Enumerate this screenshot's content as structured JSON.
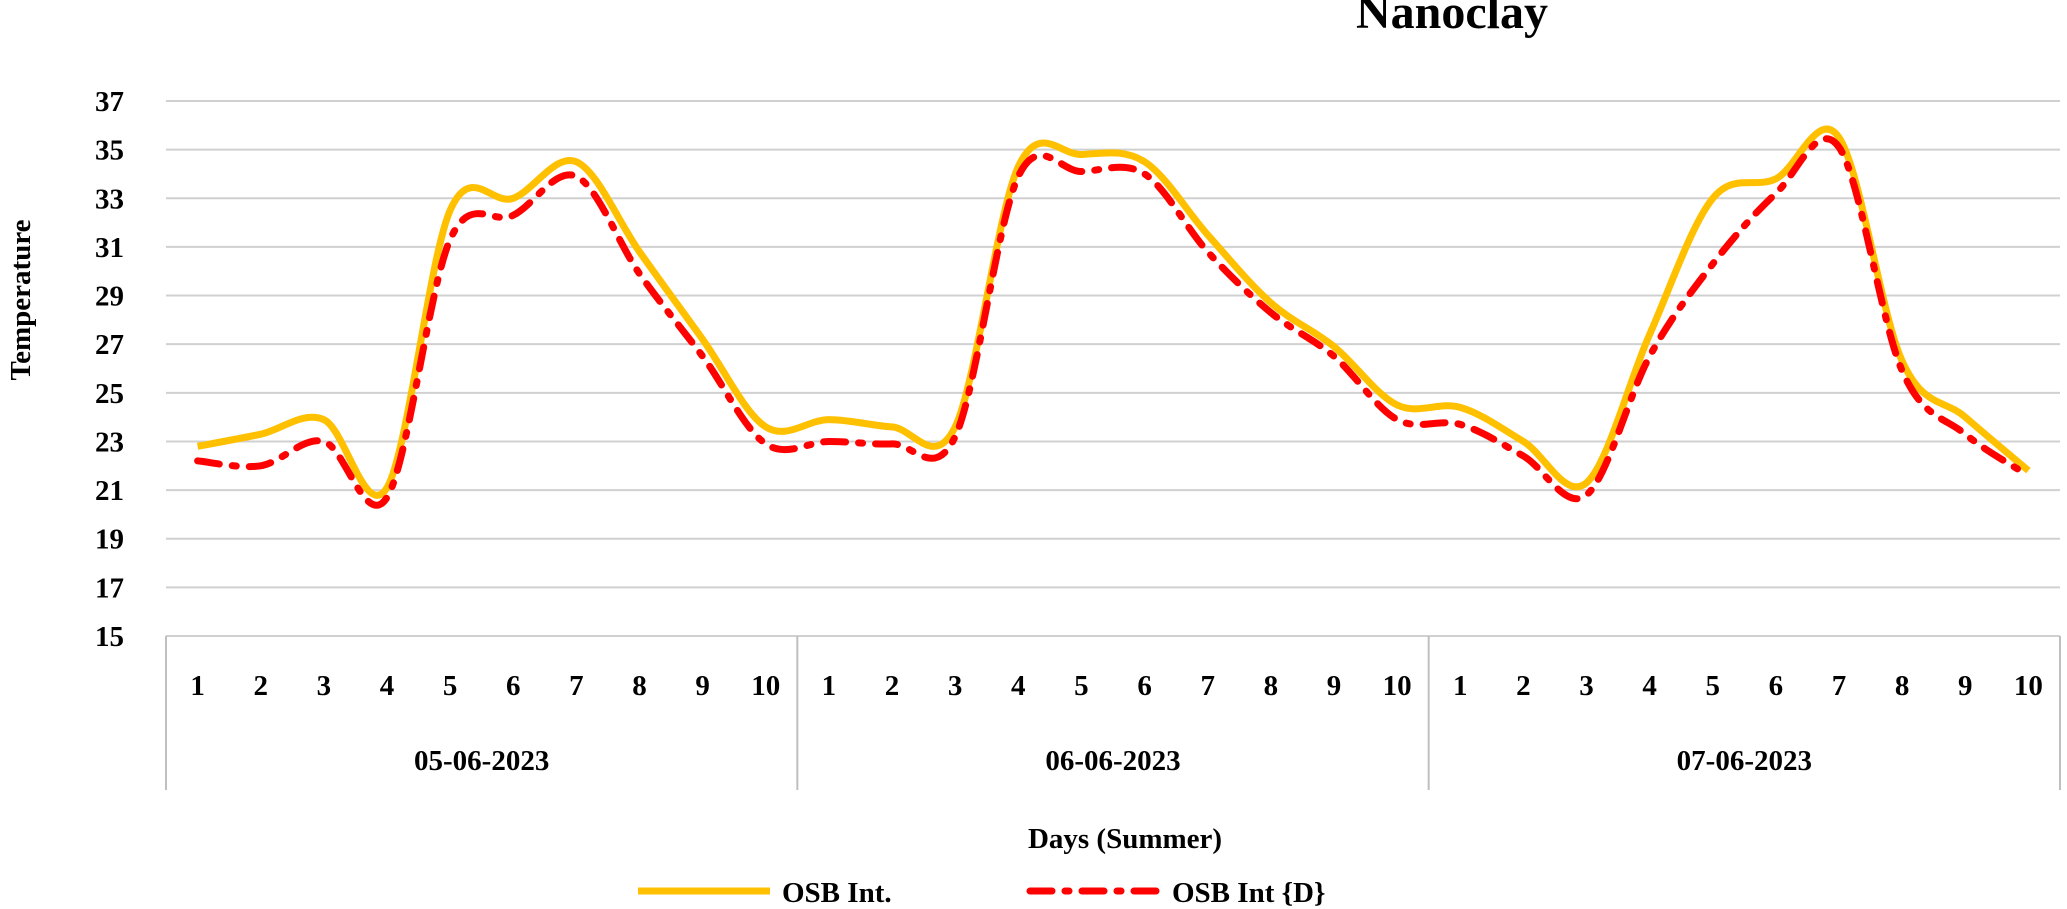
{
  "chart_data": {
    "type": "line",
    "title": "Nanoclay",
    "xlabel": "Days (Summer)",
    "ylabel": "Temperature",
    "ylim": [
      15,
      37
    ],
    "yticks": [
      15,
      17,
      19,
      21,
      23,
      25,
      27,
      29,
      31,
      33,
      35,
      37
    ],
    "grid": true,
    "legend_position": "bottom",
    "groups": [
      {
        "label": "05-06-2023",
        "categories": [
          "1",
          "2",
          "3",
          "4",
          "5",
          "6",
          "7",
          "8",
          "9",
          "10"
        ]
      },
      {
        "label": "06-06-2023",
        "categories": [
          "1",
          "2",
          "3",
          "4",
          "5",
          "6",
          "7",
          "8",
          "9",
          "10"
        ]
      },
      {
        "label": "07-06-2023",
        "categories": [
          "1",
          "2",
          "3",
          "4",
          "5",
          "6",
          "7",
          "8",
          "9",
          "10"
        ]
      }
    ],
    "series": [
      {
        "name": "OSB Int.",
        "color": "#FFC000",
        "style": "solid",
        "values": [
          22.8,
          23.3,
          23.9,
          21.1,
          32.5,
          33.0,
          34.5,
          30.8,
          27.2,
          23.6,
          23.9,
          23.6,
          23.6,
          34.3,
          34.8,
          34.5,
          31.5,
          28.7,
          26.9,
          24.5,
          24.4,
          23.0,
          21.3,
          27.4,
          33.0,
          33.8,
          35.5,
          26.3,
          24.0,
          21.8
        ]
      },
      {
        "name": "OSB Int {D}",
        "color": "#FF0000",
        "style": "dash-dot",
        "values": [
          22.2,
          22.0,
          23.0,
          20.7,
          31.3,
          32.3,
          33.9,
          29.9,
          26.5,
          22.9,
          23.0,
          22.9,
          23.2,
          33.9,
          34.1,
          34.0,
          30.8,
          28.3,
          26.5,
          23.9,
          23.7,
          22.4,
          20.8,
          26.5,
          30.3,
          33.2,
          35.1,
          25.9,
          23.3,
          21.6
        ]
      }
    ]
  }
}
